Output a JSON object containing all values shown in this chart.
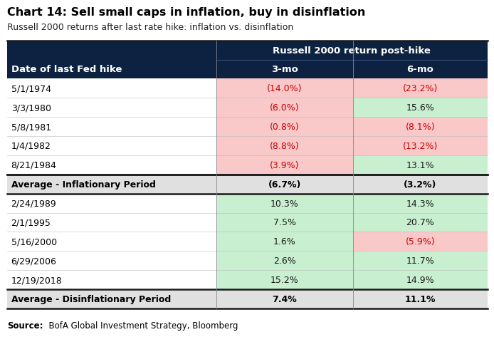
{
  "title": "Chart 14: Sell small caps in inflation, buy in disinflation",
  "subtitle": "Russell 2000 returns after last rate hike: inflation vs. disinflation",
  "header_col": "Date of last Fed hike",
  "header_span": "Russell 2000 return post-hike",
  "col1": "3-mo",
  "col2": "6-mo",
  "inflationary_rows": [
    {
      "date": "5/1/1974",
      "mo3": "(14.0%)",
      "mo6": "(23.2%)",
      "mo3_neg": true,
      "mo6_neg": true
    },
    {
      "date": "3/3/1980",
      "mo3": "(6.0%)",
      "mo6": "15.6%",
      "mo3_neg": true,
      "mo6_neg": false
    },
    {
      "date": "5/8/1981",
      "mo3": "(0.8%)",
      "mo6": "(8.1%)",
      "mo3_neg": true,
      "mo6_neg": true
    },
    {
      "date": "1/4/1982",
      "mo3": "(8.8%)",
      "mo6": "(13.2%)",
      "mo3_neg": true,
      "mo6_neg": true
    },
    {
      "date": "8/21/1984",
      "mo3": "(3.9%)",
      "mo6": "13.1%",
      "mo3_neg": true,
      "mo6_neg": false
    }
  ],
  "avg_inflationary": {
    "label": "Average - Inflationary Period",
    "mo3": "(6.7%)",
    "mo6": "(3.2%)"
  },
  "disinflationary_rows": [
    {
      "date": "2/24/1989",
      "mo3": "10.3%",
      "mo6": "14.3%",
      "mo3_neg": false,
      "mo6_neg": false
    },
    {
      "date": "2/1/1995",
      "mo3": "7.5%",
      "mo6": "20.7%",
      "mo3_neg": false,
      "mo6_neg": false
    },
    {
      "date": "5/16/2000",
      "mo3": "1.6%",
      "mo6": "(5.9%)",
      "mo3_neg": false,
      "mo6_neg": true
    },
    {
      "date": "6/29/2006",
      "mo3": "2.6%",
      "mo6": "11.7%",
      "mo3_neg": false,
      "mo6_neg": false
    },
    {
      "date": "12/19/2018",
      "mo3": "15.2%",
      "mo6": "14.9%",
      "mo3_neg": false,
      "mo6_neg": false
    }
  ],
  "avg_disinflationary": {
    "label": "Average - Disinflationary Period",
    "mo3": "7.4%",
    "mo6": "11.1%"
  },
  "source_bold": "Source:",
  "source_rest": "  BofA Global Investment Strategy, Bloomberg",
  "header_bg": "#0d2240",
  "header_text": "#ffffff",
  "avg_bg": "#e0e0e0",
  "red_bg": "#f9c8c8",
  "green_bg": "#c8f0d0",
  "row_bg_white": "#ffffff",
  "neg_text": "#cc0000",
  "pos_text": "#1a1a1a",
  "avg_text": "#000000",
  "border_dark": "#1a1a1a",
  "border_light": "#bbbbbb"
}
